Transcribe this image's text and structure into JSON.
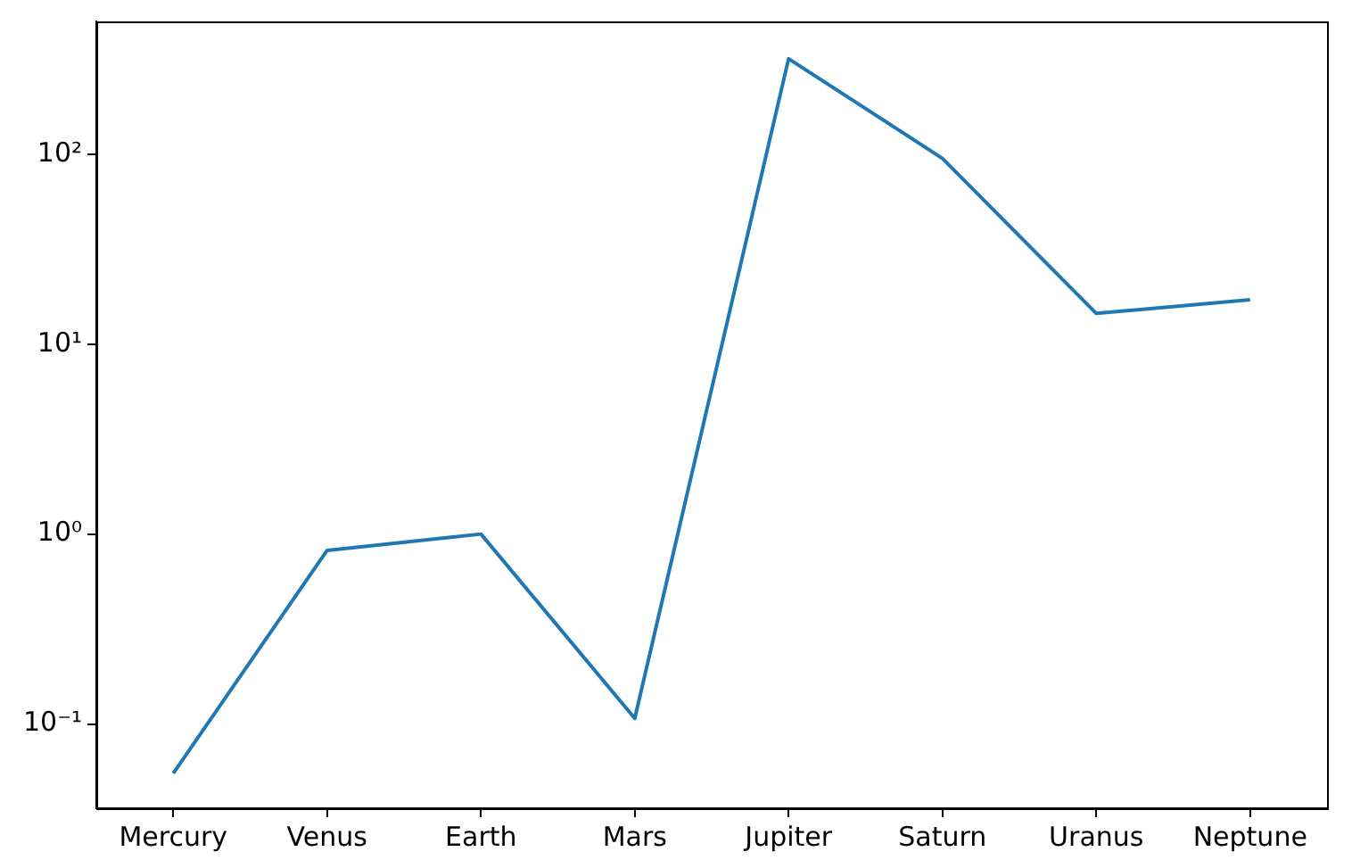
{
  "chart_data": {
    "type": "line",
    "categories": [
      "Mercury",
      "Venus",
      "Earth",
      "Mars",
      "Jupiter",
      "Saturn",
      "Uranus",
      "Neptune"
    ],
    "series": [
      {
        "color": "#1f77b4",
        "values": [
          0.055,
          0.82,
          1,
          0.107,
          318,
          95,
          14.5,
          17.1
        ]
      }
    ],
    "log": "y",
    "ylim": [
      0.036,
      500
    ],
    "yticks": [
      {
        "value": 0.1,
        "label": "10⁻¹"
      },
      {
        "value": 1,
        "label": "10⁰"
      },
      {
        "value": 10,
        "label": "10¹"
      },
      {
        "value": 100,
        "label": "10²"
      }
    ],
    "grid": false,
    "legend": false,
    "marker": "none",
    "line_style": "solid"
  }
}
